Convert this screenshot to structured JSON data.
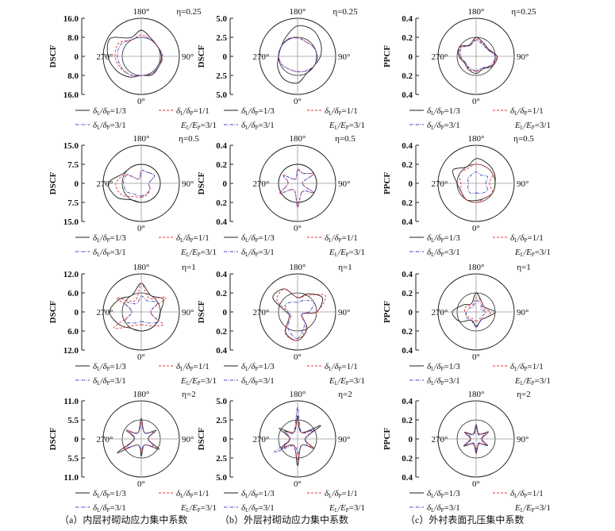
{
  "chart_data": [
    {
      "type": "polar-line",
      "panel": "a",
      "eta_label": "η=0.25",
      "ylabel": "DSCF",
      "rmax": 16,
      "ticks": [
        "16.0",
        "8.0",
        "0",
        "8.0",
        "16.0"
      ],
      "angle_labels": [
        "180°",
        "90°",
        "0°",
        "270°"
      ],
      "angles": [
        0,
        30,
        60,
        90,
        120,
        150,
        180,
        210,
        240,
        270,
        300,
        330
      ],
      "series": [
        {
          "name": "δL/δP=1/3",
          "values": [
            8,
            9,
            8.5,
            8.5,
            8,
            8.5,
            11,
            9,
            15,
            14,
            12,
            10
          ]
        },
        {
          "name": "δL/δP=1/1",
          "values": [
            8,
            8.5,
            8.5,
            9,
            8,
            8,
            9,
            8,
            11,
            11,
            10,
            9
          ]
        },
        {
          "name": "δL/δP=3/1",
          "values": [
            8,
            8.5,
            8.5,
            9,
            8,
            8,
            8,
            8,
            10,
            10,
            9.5,
            9
          ]
        }
      ]
    },
    {
      "type": "polar-line",
      "panel": "b",
      "eta_label": "η=0.25",
      "ylabel": "DSCF",
      "rmax": 5,
      "ticks": [
        "5.0",
        "2.5",
        "0",
        "2.5",
        "5.0"
      ],
      "angle_labels": [
        "180°",
        "90°",
        "0°",
        "270°"
      ],
      "angles": [
        0,
        30,
        60,
        90,
        120,
        150,
        180,
        210,
        240,
        270,
        300,
        330
      ],
      "series": [
        {
          "name": "δL/δP=1/3",
          "values": [
            3.5,
            2.5,
            2.5,
            3,
            3.5,
            4,
            4,
            3,
            2.5,
            2.5,
            3,
            3.5
          ]
        },
        {
          "name": "δL/δP=1/1",
          "values": [
            2,
            2.2,
            2.5,
            2.6,
            2.4,
            2.2,
            2.5,
            2.6,
            2.5,
            2.5,
            2.3,
            2
          ]
        },
        {
          "name": "δL/δP=3/1",
          "values": [
            2,
            2.2,
            2.5,
            2.6,
            2.4,
            2.2,
            2.4,
            2.6,
            2.5,
            2.5,
            2.3,
            2
          ]
        }
      ]
    },
    {
      "type": "polar-line",
      "panel": "c",
      "eta_label": "η=0.25",
      "ylabel": "PPCF",
      "rmax": 0.4,
      "ticks": [
        "0.4",
        "0.2",
        "0",
        "0.2",
        "0.4"
      ],
      "angle_labels": [
        "180°",
        "90°",
        "0°",
        "270°"
      ],
      "angles": [
        0,
        30,
        60,
        90,
        120,
        150,
        180,
        210,
        240,
        270,
        300,
        330
      ],
      "series": [
        {
          "name": "δL/δP=1/3",
          "values": [
            0.18,
            0.15,
            0.2,
            0.22,
            0.15,
            0.16,
            0.2,
            0.14,
            0.2,
            0.18,
            0.14,
            0.16
          ]
        },
        {
          "name": "δL/δP=1/1",
          "values": [
            0.16,
            0.14,
            0.19,
            0.21,
            0.14,
            0.15,
            0.18,
            0.13,
            0.19,
            0.17,
            0.13,
            0.15
          ]
        },
        {
          "name": "δL/δP=3/1",
          "values": [
            0.15,
            0.14,
            0.18,
            0.2,
            0.14,
            0.14,
            0.17,
            0.13,
            0.18,
            0.16,
            0.13,
            0.14
          ]
        }
      ]
    },
    {
      "type": "polar-line",
      "panel": "a",
      "eta_label": "η=0.5",
      "ylabel": "DSCF",
      "rmax": 15,
      "ticks": [
        "15.0",
        "7.5",
        "0",
        "7.5",
        "15.0"
      ],
      "angle_labels": [
        "180°",
        "90°",
        "0°",
        "270°"
      ],
      "angles": [
        0,
        30,
        60,
        90,
        120,
        150,
        180,
        210,
        240,
        270,
        300,
        330
      ],
      "series": [
        {
          "name": "δL/δP=1/3",
          "values": [
            7.5,
            7.5,
            7.5,
            7.5,
            7.5,
            7.5,
            7.5,
            7.5,
            8,
            13,
            11,
            7.5
          ]
        },
        {
          "name": "δL/δP=1/1",
          "values": [
            5.5,
            5,
            4,
            3,
            6,
            5,
            5,
            2,
            7,
            10,
            9,
            6
          ]
        },
        {
          "name": "δL/δP=3/1",
          "values": [
            5,
            4.5,
            4,
            3,
            6,
            5,
            5,
            2,
            6.5,
            7,
            6.5,
            5
          ]
        }
      ]
    },
    {
      "type": "polar-line",
      "panel": "b",
      "eta_label": "η=0.5",
      "ylabel": "DSCF",
      "rmax": 0.4,
      "ticks": [
        "0.4",
        "0.2",
        "0",
        "0.2",
        "0.4"
      ],
      "angle_labels": [
        "180°",
        "90°",
        "0°",
        "270°"
      ],
      "angles": [
        0,
        30,
        60,
        90,
        120,
        150,
        180,
        210,
        240,
        270,
        300,
        330
      ],
      "series": [
        {
          "name": "δL/δP=1/3",
          "values": [
            0.2,
            0.2,
            0.2,
            0.2,
            0.2,
            0.2,
            0.2,
            0.2,
            0.2,
            0.2,
            0.2,
            0.2
          ]
        },
        {
          "name": "δL/δP=1/1",
          "values": [
            0.25,
            0.1,
            0.2,
            0.05,
            0.2,
            0.12,
            0.15,
            0.05,
            0.18,
            0.1,
            0.22,
            0.08
          ]
        },
        {
          "name": "δL/δP=3/1",
          "values": [
            0.24,
            0.1,
            0.19,
            0.05,
            0.19,
            0.12,
            0.14,
            0.05,
            0.17,
            0.1,
            0.21,
            0.08
          ]
        }
      ]
    },
    {
      "type": "polar-line",
      "panel": "c",
      "eta_label": "η=0.5",
      "ylabel": "PPCF",
      "rmax": 0.4,
      "ticks": [
        "0.4",
        "0.2",
        "0",
        "0.2",
        "0.4"
      ],
      "angle_labels": [
        "180°",
        "90°",
        "0°",
        "270°"
      ],
      "angles": [
        0,
        30,
        60,
        90,
        120,
        150,
        180,
        210,
        240,
        270,
        300,
        330
      ],
      "series": [
        {
          "name": "δL/δP=1/3",
          "values": [
            0.18,
            0.18,
            0.2,
            0.2,
            0.22,
            0.24,
            0.26,
            0.2,
            0.28,
            0.2,
            0.18,
            0.2
          ]
        },
        {
          "name": "δL/δP=1/1",
          "values": [
            0.2,
            0.18,
            0.2,
            0.14,
            0.2,
            0.2,
            0.2,
            0.18,
            0.2,
            0.16,
            0.18,
            0.2
          ]
        },
        {
          "name": "δL/δP=3/1",
          "values": [
            0.1,
            0.12,
            0.14,
            0.1,
            0.14,
            0.1,
            0.12,
            0.1,
            0.1,
            0.08,
            0.1,
            0.12
          ]
        }
      ]
    },
    {
      "type": "polar-line",
      "panel": "a",
      "eta_label": "η=1",
      "ylabel": "DSCF",
      "rmax": 12,
      "ticks": [
        "12.0",
        "6.0",
        "0",
        "6.0",
        "12.0"
      ],
      "angle_labels": [
        "180°",
        "90°",
        "0°",
        "270°"
      ],
      "angles": [
        0,
        30,
        60,
        90,
        120,
        150,
        180,
        210,
        240,
        270,
        300,
        330
      ],
      "series": [
        {
          "name": "δL/δP=1/3",
          "values": [
            6,
            6,
            6,
            6,
            8,
            6,
            9,
            6,
            8,
            10,
            8,
            6
          ]
        },
        {
          "name": "δL/δP=1/1",
          "values": [
            4,
            5,
            8,
            3,
            9,
            5,
            9,
            4,
            9,
            3,
            10,
            5
          ]
        },
        {
          "name": "δL/δP=3/1",
          "values": [
            3,
            4,
            6,
            3,
            6,
            4,
            5,
            3,
            6,
            3,
            6,
            4
          ]
        }
      ]
    },
    {
      "type": "polar-line",
      "panel": "b",
      "eta_label": "η=1",
      "ylabel": "DSCF",
      "rmax": 0.4,
      "ticks": [
        "0.4",
        "0.2",
        "0",
        "0.2",
        "0.4"
      ],
      "angle_labels": [
        "180°",
        "90°",
        "0°",
        "270°"
      ],
      "angles": [
        0,
        30,
        60,
        90,
        120,
        150,
        180,
        210,
        240,
        270,
        300,
        330
      ],
      "series": [
        {
          "name": "δL/δP=1/3",
          "values": [
            0.3,
            0.2,
            0.05,
            0.2,
            0.3,
            0.22,
            0.15,
            0.28,
            0.3,
            0.12,
            0.1,
            0.25
          ]
        },
        {
          "name": "δL/δP=1/1",
          "values": [
            0.3,
            0.18,
            0.05,
            0.2,
            0.34,
            0.2,
            0.15,
            0.28,
            0.25,
            0.1,
            0.1,
            0.26
          ]
        },
        {
          "name": "δL/δP=3/1",
          "values": [
            0.28,
            0.15,
            0.05,
            0.12,
            0.2,
            0.14,
            0.1,
            0.12,
            0.15,
            0.1,
            0.08,
            0.2
          ]
        }
      ]
    },
    {
      "type": "polar-line",
      "panel": "c",
      "eta_label": "η=1",
      "ylabel": "PPCF",
      "rmax": 0.4,
      "ticks": [
        "0.4",
        "0.2",
        "0",
        "0.2",
        "0.4"
      ],
      "angle_labels": [
        "180°",
        "90°",
        "0°",
        "270°"
      ],
      "angles": [
        0,
        30,
        60,
        90,
        120,
        150,
        180,
        210,
        240,
        270,
        300,
        330
      ],
      "series": [
        {
          "name": "δL/δP=1/3",
          "values": [
            0.15,
            0.1,
            0.12,
            0.2,
            0.1,
            0.12,
            0.2,
            0.1,
            0.15,
            0.25,
            0.2,
            0.1
          ]
        },
        {
          "name": "δL/δP=1/1",
          "values": [
            0.1,
            0.08,
            0.12,
            0.15,
            0.08,
            0.12,
            0.15,
            0.08,
            0.12,
            0.12,
            0.1,
            0.08
          ]
        },
        {
          "name": "δL/δP=3/1",
          "values": [
            0.16,
            0.1,
            0.08,
            0.1,
            0.06,
            0.1,
            0.12,
            0.06,
            0.08,
            0.1,
            0.12,
            0.1
          ]
        }
      ]
    },
    {
      "type": "polar-line",
      "panel": "a",
      "eta_label": "η=2",
      "ylabel": "DSCF",
      "rmax": 11,
      "ticks": [
        "11.0",
        "5.5",
        "0",
        "5.5",
        "11.0"
      ],
      "angle_labels": [
        "180°",
        "90°",
        "0°",
        "270°"
      ],
      "angles": [
        0,
        30,
        60,
        90,
        120,
        150,
        180,
        210,
        240,
        270,
        300,
        330
      ],
      "series": [
        {
          "name": "δL/δP=1/3",
          "values": [
            5,
            2,
            6,
            2,
            5,
            2,
            6,
            2,
            5,
            2,
            8,
            2
          ]
        },
        {
          "name": "δL/δP=1/1",
          "values": [
            4,
            2,
            5,
            2,
            4,
            2,
            5,
            2,
            5,
            2,
            6,
            2
          ]
        },
        {
          "name": "δL/δP=3/1",
          "values": [
            3,
            2,
            4,
            2,
            4,
            2,
            4,
            2,
            4,
            2,
            5,
            2
          ]
        }
      ]
    },
    {
      "type": "polar-line",
      "panel": "b",
      "eta_label": "η=2",
      "ylabel": "DSCF",
      "rmax": 5,
      "ticks": [
        "5.0",
        "2.5",
        "0",
        "2.5",
        "5.0"
      ],
      "angle_labels": [
        "180°",
        "90°",
        "0°",
        "270°"
      ],
      "angles": [
        0,
        30,
        60,
        90,
        120,
        150,
        180,
        210,
        240,
        270,
        300,
        330
      ],
      "series": [
        {
          "name": "δL/δP=1/3",
          "values": [
            3.5,
            1,
            2.5,
            1,
            3.5,
            1,
            3,
            1,
            2.8,
            1,
            2.5,
            1
          ]
        },
        {
          "name": "δL/δP=1/1",
          "values": [
            2.8,
            1,
            2,
            1,
            2.2,
            1,
            2.5,
            1,
            2,
            1,
            2,
            1
          ]
        },
        {
          "name": "δL/δP=3/1",
          "values": [
            2,
            1,
            1.5,
            1,
            2.5,
            1,
            4.2,
            1,
            2,
            1,
            3.5,
            1
          ]
        }
      ]
    },
    {
      "type": "polar-line",
      "panel": "c",
      "eta_label": "η=2",
      "ylabel": "PPCF",
      "rmax": 0.4,
      "ticks": [
        "0.4",
        "0.2",
        "0",
        "0.2",
        "0.4"
      ],
      "angle_labels": [
        "180°",
        "90°",
        "0°",
        "270°"
      ],
      "angles": [
        0,
        30,
        60,
        90,
        120,
        150,
        180,
        210,
        240,
        270,
        300,
        330
      ],
      "series": [
        {
          "name": "δL/δP=1/3",
          "values": [
            0.15,
            0.06,
            0.14,
            0.06,
            0.15,
            0.06,
            0.15,
            0.06,
            0.14,
            0.06,
            0.15,
            0.06
          ]
        },
        {
          "name": "δL/δP=1/1",
          "values": [
            0.13,
            0.06,
            0.12,
            0.06,
            0.13,
            0.06,
            0.12,
            0.06,
            0.12,
            0.06,
            0.13,
            0.06
          ]
        },
        {
          "name": "δL/δP=3/1",
          "values": [
            0.12,
            0.05,
            0.12,
            0.05,
            0.12,
            0.05,
            0.12,
            0.05,
            0.11,
            0.05,
            0.12,
            0.05
          ]
        }
      ]
    }
  ],
  "legend": {
    "items": [
      {
        "sym": "δ",
        "a": "L",
        "sep": "/δ",
        "b": "P",
        "val": "=1/3",
        "color": "#222222",
        "dash": ""
      },
      {
        "sym": "δ",
        "a": "L",
        "sep": "/δ",
        "b": "P",
        "val": "=1/1",
        "color": "#e8303a",
        "dash": "3,2"
      },
      {
        "sym": "δ",
        "a": "L",
        "sep": "/δ",
        "b": "P",
        "val": "=3/1",
        "color": "#4444bb",
        "dash": "4,1.5,1,1.5"
      },
      {
        "sym": "E",
        "a": "L",
        "sep": "/E",
        "b": "P",
        "val": "=3/1",
        "color": "",
        "dash": ""
      }
    ]
  },
  "captions": [
    "（a）内层衬砌动应力集中系数",
    "（b）外层衬砌动应力集中系数",
    "（c）外衬表面孔压集中系数"
  ]
}
